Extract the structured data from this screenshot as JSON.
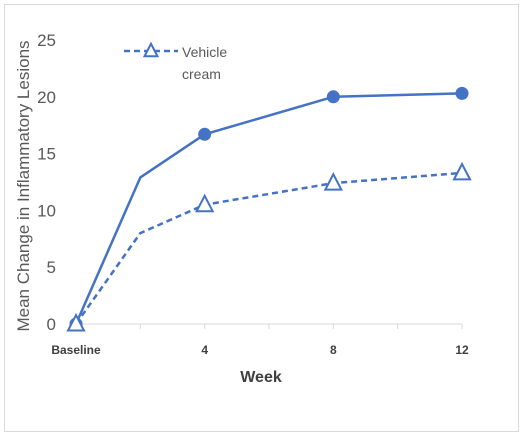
{
  "chart_data": {
    "type": "line",
    "categories": [
      "Baseline",
      "",
      "4",
      "",
      "8",
      "",
      "12"
    ],
    "x": [
      0,
      2,
      4,
      6,
      8,
      10,
      12
    ],
    "xlabel": "Week",
    "ylabel": "Mean Change in Inflammatory Lesions",
    "ylim": [
      0,
      25
    ],
    "yticks": [
      "0",
      "5",
      "10",
      "15",
      "20",
      "25"
    ],
    "grid": false,
    "legend_position": "top-left",
    "series": [
      {
        "name": "",
        "style": "solid",
        "marker": "circle",
        "color": "#4472C4",
        "points": [
          [
            0,
            0
          ],
          [
            2,
            12.9
          ],
          [
            4,
            16.7
          ],
          [
            8,
            20.0
          ],
          [
            12,
            20.3
          ]
        ]
      },
      {
        "name": "Vehicle cream",
        "style": "dashed",
        "marker": "triangle",
        "color": "#4472C4",
        "points": [
          [
            0,
            0
          ],
          [
            2,
            8.0
          ],
          [
            4,
            10.5
          ],
          [
            8,
            12.4
          ],
          [
            12,
            13.3
          ]
        ]
      }
    ],
    "legend": {
      "line1": "Vehicle",
      "line2": "cream"
    }
  }
}
